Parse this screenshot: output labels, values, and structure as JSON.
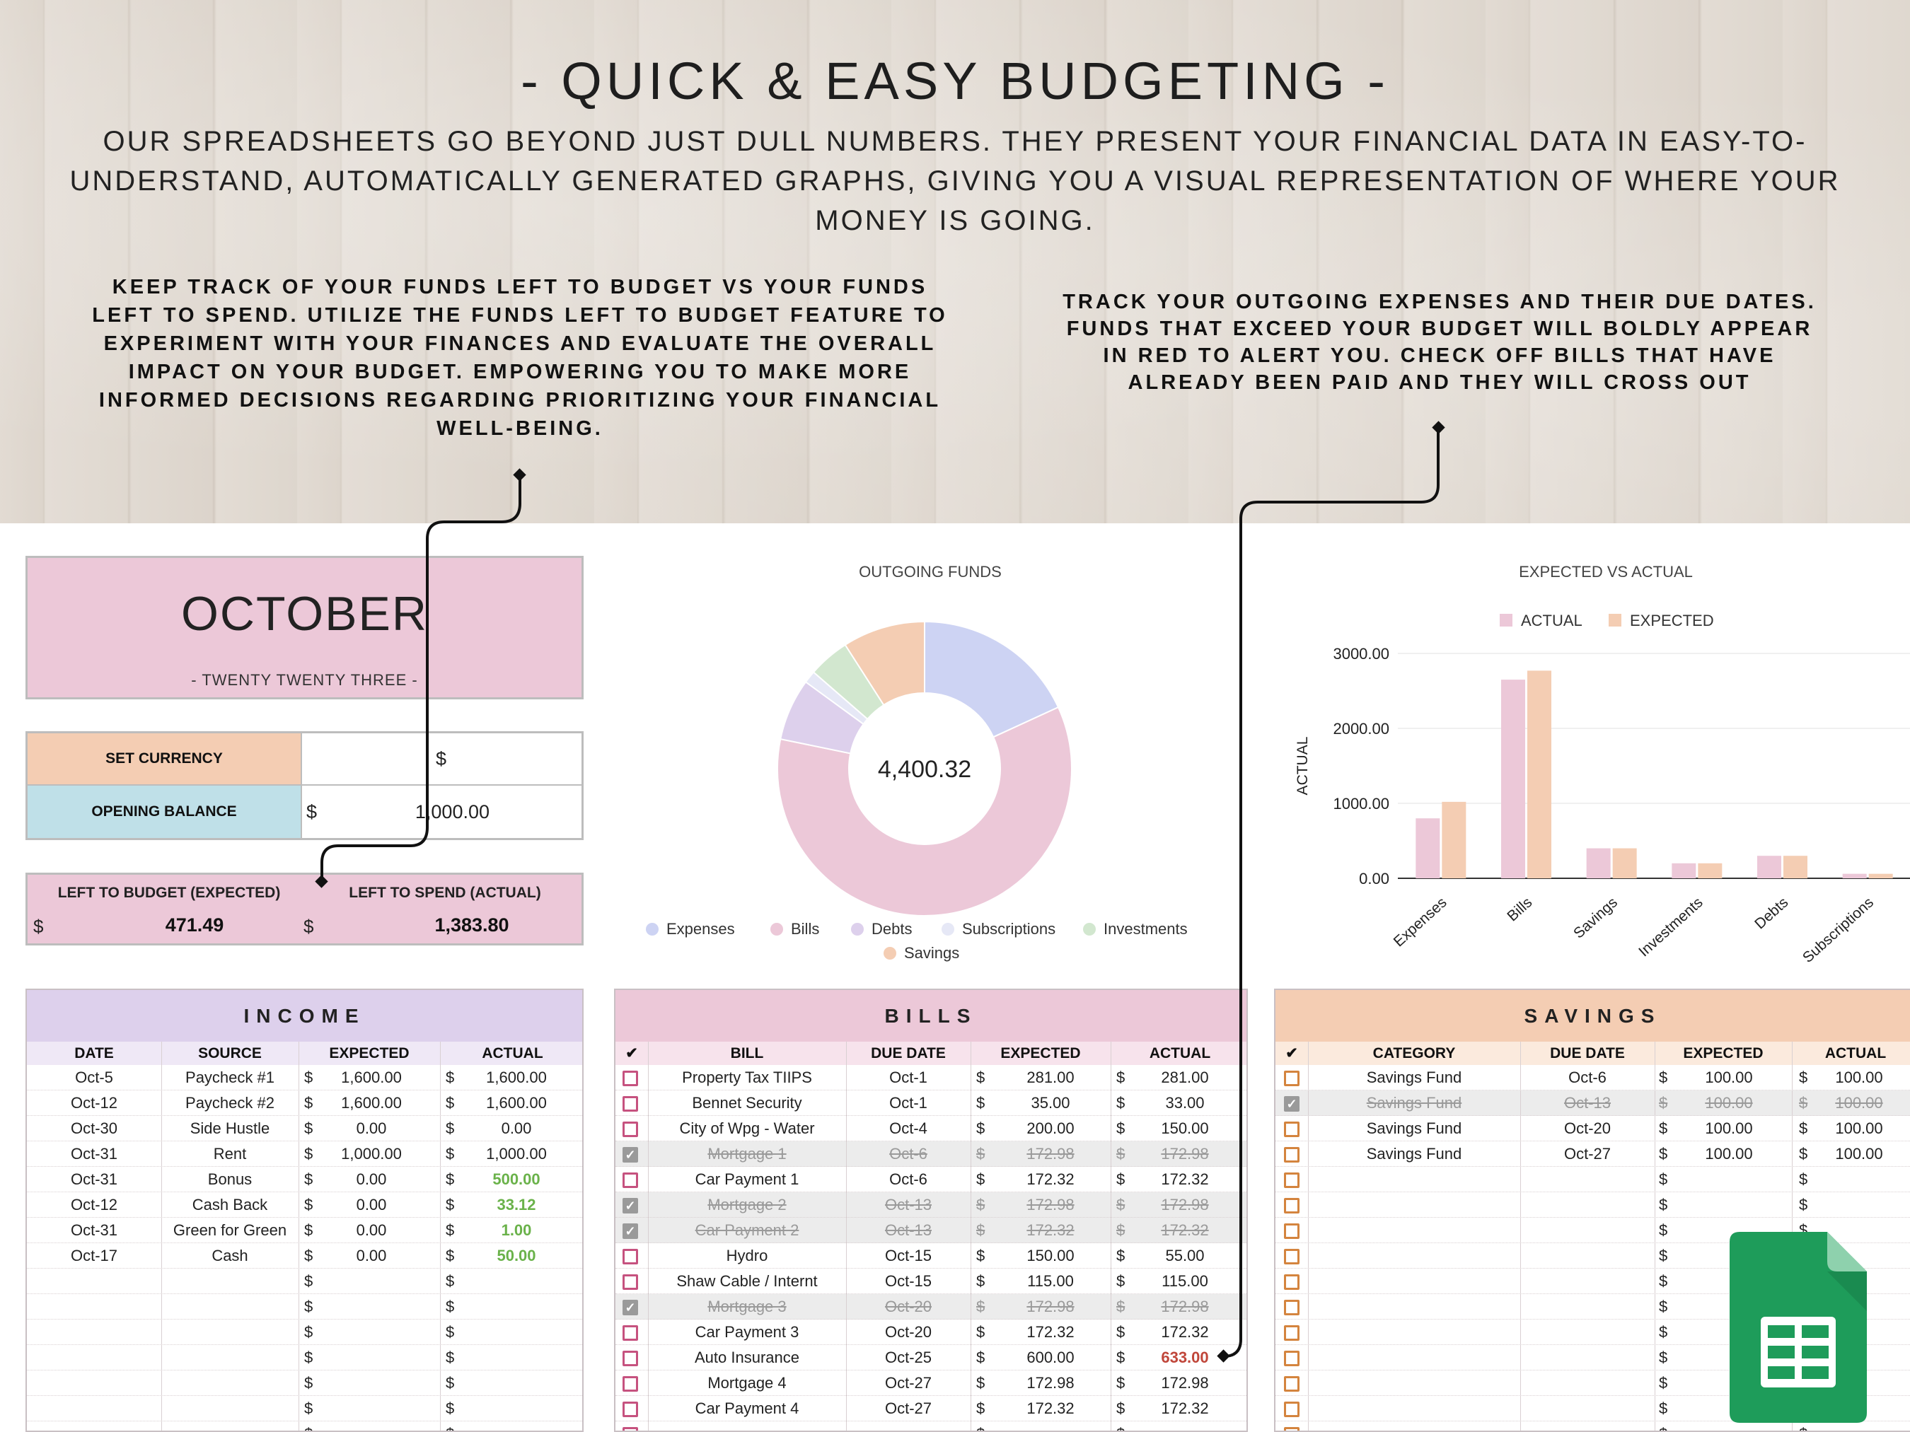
{
  "banner": {
    "title": "- QUICK & EASY BUDGETING -",
    "subtitle": "OUR SPREADSHEETS GO BEYOND JUST DULL NUMBERS. THEY PRESENT YOUR FINANCIAL DATA IN EASY-TO-UNDERSTAND, AUTOMATICALLY GENERATED GRAPHS, GIVING YOU A VISUAL REPRESENTATION OF WHERE YOUR MONEY IS GOING.",
    "left_callout": "KEEP TRACK OF YOUR FUNDS LEFT TO BUDGET VS YOUR FUNDS LEFT TO SPEND. UTILIZE THE FUNDS LEFT TO BUDGET FEATURE TO EXPERIMENT WITH YOUR FINANCES AND EVALUATE THE OVERALL IMPACT ON YOUR BUDGET. EMPOWERING YOU TO MAKE MORE INFORMED DECISIONS REGARDING PRIORITIZING YOUR FINANCIAL WELL-BEING.",
    "right_callout": "TRACK YOUR OUTGOING EXPENSES AND THEIR DUE DATES. FUNDS THAT EXCEED YOUR BUDGET WILL BOLDLY APPEAR IN RED TO ALERT YOU. CHECK OFF BILLS THAT HAVE ALREADY BEEN PAID AND THEY WILL CROSS OUT"
  },
  "month": {
    "name": "OCTOBER",
    "year": "- TWENTY TWENTY THREE -"
  },
  "currency": {
    "label": "SET CURRENCY",
    "symbol": "$"
  },
  "opening": {
    "label": "OPENING BALANCE",
    "symbol": "$",
    "value": "1,000.00"
  },
  "left_to_budget": {
    "label": "LEFT TO BUDGET (EXPECTED)",
    "symbol": "$",
    "value": "471.49"
  },
  "left_to_spend": {
    "label": "LEFT TO SPEND (ACTUAL)",
    "symbol": "$",
    "value": "1,383.80"
  },
  "colors": {
    "pink": "#ecc8d8",
    "peach": "#f4cdb3",
    "lavender": "#ddd0ec",
    "blue": "#bfe0e8",
    "sheets_green": "#1e9c5a"
  },
  "chart_data": [
    {
      "type": "pie",
      "title": "OUTGOING FUNDS",
      "center_label": "4,400.32",
      "categories": [
        "Expenses",
        "Bills",
        "Debts",
        "Subscriptions",
        "Investments",
        "Savings"
      ],
      "values": [
        800,
        2650,
        300,
        60,
        200,
        400
      ],
      "colors": [
        "#cdd3f3",
        "#ecc8d8",
        "#ddd0ec",
        "#e6e8f6",
        "#d2e7cf",
        "#f4cdb3"
      ],
      "legend": "bottom"
    },
    {
      "type": "bar",
      "title": "EXPECTED VS ACTUAL",
      "ylabel": "ACTUAL",
      "categories": [
        "Expenses",
        "Bills",
        "Savings",
        "Investments",
        "Debts",
        "Subscriptions"
      ],
      "series": [
        {
          "name": "ACTUAL",
          "color": "#ecc8d8",
          "values": [
            800,
            2650,
            400,
            200,
            300,
            60
          ]
        },
        {
          "name": "EXPECTED",
          "color": "#f4cdb3",
          "values": [
            1020,
            2770,
            400,
            200,
            300,
            60
          ]
        }
      ],
      "yticks": [
        "0.00",
        "1000.00",
        "2000.00",
        "3000.00"
      ],
      "ylim": [
        0,
        3000
      ],
      "legend": "top"
    }
  ],
  "income": {
    "title": "INCOME",
    "headers": [
      "DATE",
      "SOURCE",
      "EXPECTED",
      "ACTUAL"
    ],
    "currency": "$",
    "rows": [
      {
        "date": "Oct-5",
        "source": "Paycheck #1",
        "expected": "1,600.00",
        "actual": "1,600.00",
        "style": ""
      },
      {
        "date": "Oct-12",
        "source": "Paycheck #2",
        "expected": "1,600.00",
        "actual": "1,600.00",
        "style": ""
      },
      {
        "date": "Oct-30",
        "source": "Side Hustle",
        "expected": "0.00",
        "actual": "0.00",
        "style": ""
      },
      {
        "date": "Oct-31",
        "source": "Rent",
        "expected": "1,000.00",
        "actual": "1,000.00",
        "style": ""
      },
      {
        "date": "Oct-31",
        "source": "Bonus",
        "expected": "0.00",
        "actual": "500.00",
        "style": "green"
      },
      {
        "date": "Oct-12",
        "source": "Cash Back",
        "expected": "0.00",
        "actual": "33.12",
        "style": "green"
      },
      {
        "date": "Oct-31",
        "source": "Green for Green",
        "expected": "0.00",
        "actual": "1.00",
        "style": "green"
      },
      {
        "date": "Oct-17",
        "source": "Cash",
        "expected": "0.00",
        "actual": "50.00",
        "style": "green"
      },
      {
        "date": "",
        "source": "",
        "expected": "",
        "actual": "",
        "style": ""
      },
      {
        "date": "",
        "source": "",
        "expected": "",
        "actual": "",
        "style": ""
      },
      {
        "date": "",
        "source": "",
        "expected": "",
        "actual": "",
        "style": ""
      },
      {
        "date": "",
        "source": "",
        "expected": "",
        "actual": "",
        "style": ""
      },
      {
        "date": "",
        "source": "",
        "expected": "",
        "actual": "",
        "style": ""
      },
      {
        "date": "",
        "source": "",
        "expected": "",
        "actual": "",
        "style": ""
      },
      {
        "date": "",
        "source": "",
        "expected": "",
        "actual": "",
        "style": ""
      }
    ]
  },
  "bills": {
    "title": "BILLS",
    "headers": [
      "✔",
      "BILL",
      "DUE DATE",
      "EXPECTED",
      "ACTUAL"
    ],
    "currency": "$",
    "rows": [
      {
        "paid": false,
        "bill": "Property Tax TIIPS",
        "due": "Oct-1",
        "expected": "281.00",
        "actual": "281.00",
        "style": ""
      },
      {
        "paid": false,
        "bill": "Bennet Security",
        "due": "Oct-1",
        "expected": "35.00",
        "actual": "33.00",
        "style": ""
      },
      {
        "paid": false,
        "bill": "City of Wpg - Water",
        "due": "Oct-4",
        "expected": "200.00",
        "actual": "150.00",
        "style": ""
      },
      {
        "paid": true,
        "bill": "Mortgage 1",
        "due": "Oct-6",
        "expected": "172.98",
        "actual": "172.98",
        "style": ""
      },
      {
        "paid": false,
        "bill": "Car Payment 1",
        "due": "Oct-6",
        "expected": "172.32",
        "actual": "172.32",
        "style": ""
      },
      {
        "paid": true,
        "bill": "Mortgage 2",
        "due": "Oct-13",
        "expected": "172.98",
        "actual": "172.98",
        "style": ""
      },
      {
        "paid": true,
        "bill": "Car Payment 2",
        "due": "Oct-13",
        "expected": "172.32",
        "actual": "172.32",
        "style": ""
      },
      {
        "paid": false,
        "bill": "Hydro",
        "due": "Oct-15",
        "expected": "150.00",
        "actual": "55.00",
        "style": ""
      },
      {
        "paid": false,
        "bill": "Shaw Cable / Internt",
        "due": "Oct-15",
        "expected": "115.00",
        "actual": "115.00",
        "style": ""
      },
      {
        "paid": true,
        "bill": "Mortgage 3",
        "due": "Oct-20",
        "expected": "172.98",
        "actual": "172.98",
        "style": ""
      },
      {
        "paid": false,
        "bill": "Car Payment 3",
        "due": "Oct-20",
        "expected": "172.32",
        "actual": "172.32",
        "style": ""
      },
      {
        "paid": false,
        "bill": "Auto Insurance",
        "due": "Oct-25",
        "expected": "600.00",
        "actual": "633.00",
        "style": "red"
      },
      {
        "paid": false,
        "bill": "Mortgage 4",
        "due": "Oct-27",
        "expected": "172.98",
        "actual": "172.98",
        "style": ""
      },
      {
        "paid": false,
        "bill": "Car Payment 4",
        "due": "Oct-27",
        "expected": "172.32",
        "actual": "172.32",
        "style": ""
      },
      {
        "paid": false,
        "bill": "",
        "due": "",
        "expected": "",
        "actual": "",
        "style": ""
      }
    ]
  },
  "savings": {
    "title": "SAVINGS",
    "headers": [
      "✔",
      "CATEGORY",
      "DUE DATE",
      "EXPECTED",
      "ACTUAL"
    ],
    "currency": "$",
    "rows": [
      {
        "paid": false,
        "category": "Savings Fund",
        "due": "Oct-6",
        "expected": "100.00",
        "actual": "100.00"
      },
      {
        "paid": true,
        "category": "Savings Fund",
        "due": "Oct-13",
        "expected": "100.00",
        "actual": "100.00"
      },
      {
        "paid": false,
        "category": "Savings Fund",
        "due": "Oct-20",
        "expected": "100.00",
        "actual": "100.00"
      },
      {
        "paid": false,
        "category": "Savings Fund",
        "due": "Oct-27",
        "expected": "100.00",
        "actual": "100.00"
      },
      {
        "paid": false,
        "category": "",
        "due": "",
        "expected": "",
        "actual": ""
      },
      {
        "paid": false,
        "category": "",
        "due": "",
        "expected": "",
        "actual": ""
      },
      {
        "paid": false,
        "category": "",
        "due": "",
        "expected": "",
        "actual": ""
      },
      {
        "paid": false,
        "category": "",
        "due": "",
        "expected": "",
        "actual": ""
      },
      {
        "paid": false,
        "category": "",
        "due": "",
        "expected": "",
        "actual": ""
      },
      {
        "paid": false,
        "category": "",
        "due": "",
        "expected": "",
        "actual": ""
      },
      {
        "paid": false,
        "category": "",
        "due": "",
        "expected": "",
        "actual": ""
      },
      {
        "paid": false,
        "category": "",
        "due": "",
        "expected": "",
        "actual": ""
      },
      {
        "paid": false,
        "category": "",
        "due": "",
        "expected": "",
        "actual": ""
      },
      {
        "paid": false,
        "category": "",
        "due": "",
        "expected": "",
        "actual": ""
      },
      {
        "paid": false,
        "category": "",
        "due": "",
        "expected": "",
        "actual": ""
      }
    ]
  },
  "app_icon": "google-sheets-icon"
}
